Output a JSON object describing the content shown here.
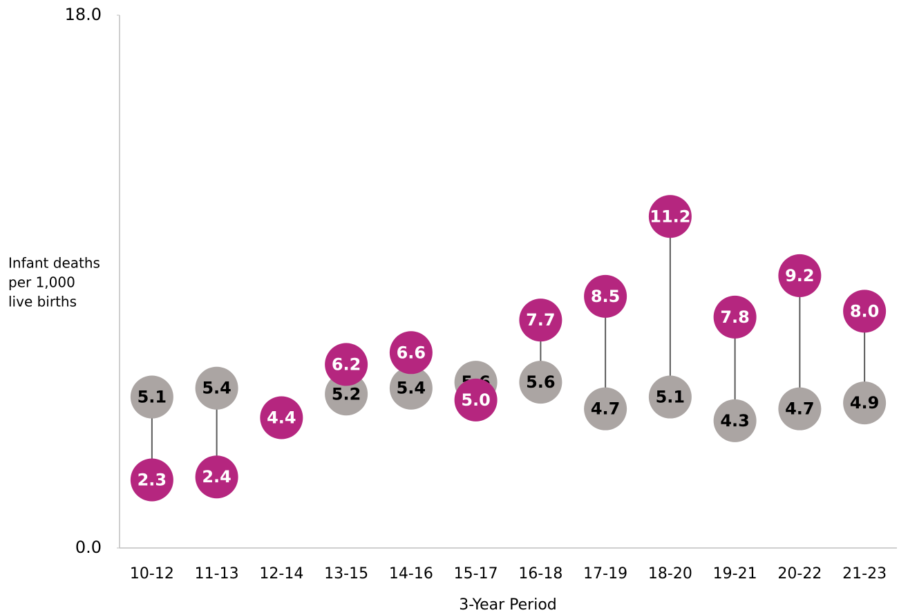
{
  "chart_data": {
    "type": "dumbbell",
    "ylabel": [
      "Infant deaths",
      "per 1,000",
      "live births"
    ],
    "xlabel": "3-Year Period",
    "categories": [
      "10-12",
      "11-13",
      "12-14",
      "13-15",
      "14-16",
      "15-17",
      "16-18",
      "17-19",
      "18-20",
      "19-21",
      "20-22",
      "21-23"
    ],
    "series": [
      {
        "color": "#aba5a3",
        "label_color": "#000000",
        "values": [
          5.1,
          5.4,
          null,
          5.2,
          5.4,
          5.6,
          5.6,
          4.7,
          5.1,
          4.3,
          4.7,
          4.9
        ],
        "value_labels": [
          "5.1",
          "5.4",
          null,
          "5.2",
          "5.4",
          "5.6",
          "5.6",
          "4.7",
          "5.1",
          "4.3",
          "4.7",
          "4.9"
        ]
      },
      {
        "color": "#b5267f",
        "label_color": "#ffffff",
        "values": [
          2.3,
          2.4,
          4.4,
          6.2,
          6.6,
          5.0,
          7.7,
          8.5,
          11.2,
          7.8,
          9.2,
          8.0
        ],
        "value_labels": [
          "2.3",
          "2.4",
          "4.4",
          "6.2",
          "6.6",
          "5.0",
          "7.7",
          "8.5",
          "11.2",
          "7.8",
          "9.2",
          "8.0"
        ]
      }
    ],
    "ylim": [
      0,
      18
    ],
    "yticks": [
      {
        "value": 0,
        "label": "0.0"
      },
      {
        "value": 18,
        "label": "18.0"
      }
    ]
  }
}
